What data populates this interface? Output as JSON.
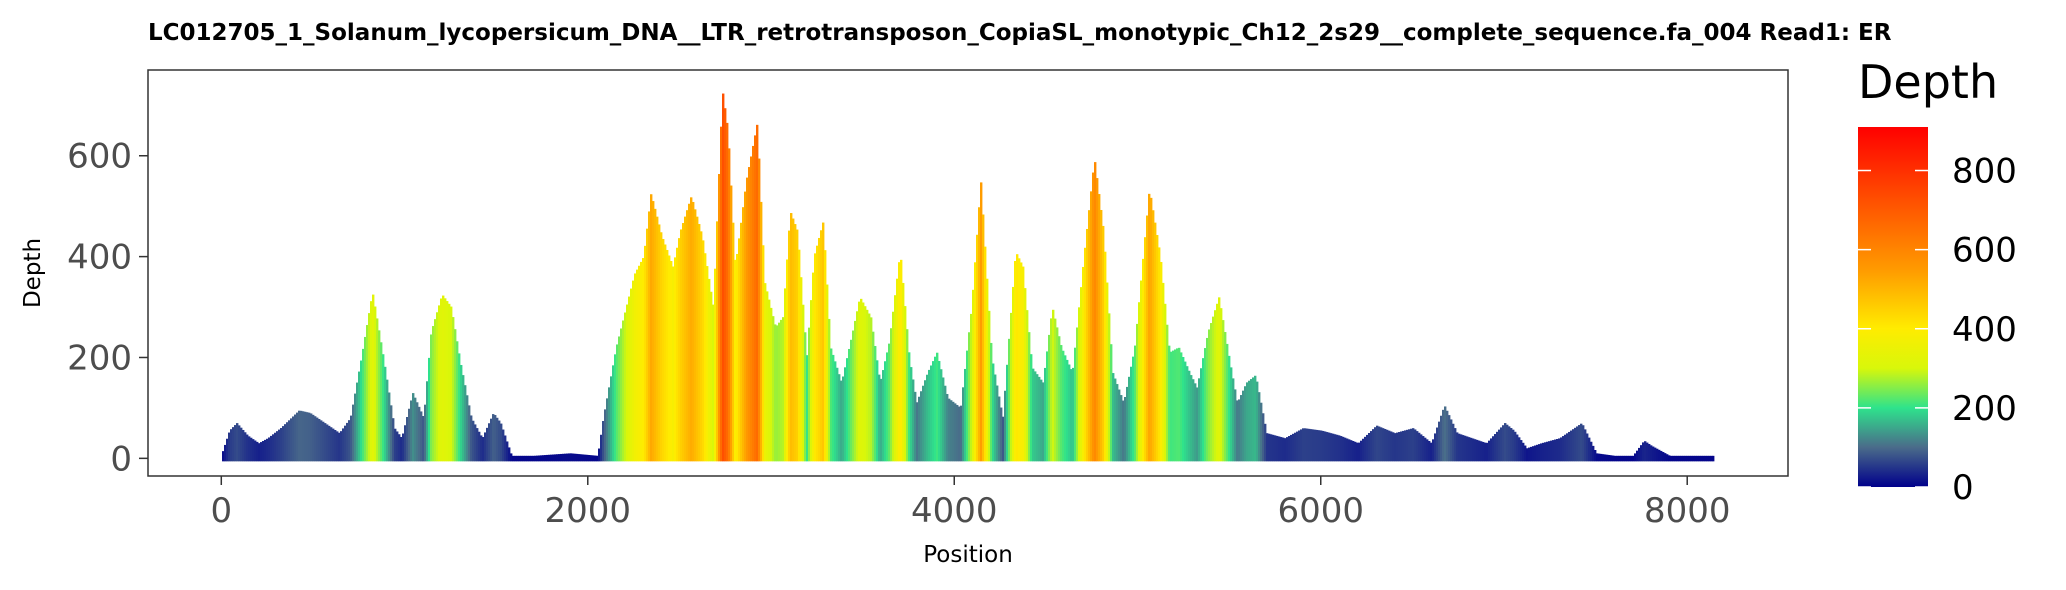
{
  "chart_data": {
    "type": "area",
    "title": "LC012705_1_Solanum_lycopersicum_DNA__LTR_retrotransposon_CopiaSL_monotypic_Ch12_2s29__complete_sequence.fa_004    Read1: ER",
    "xlabel": "Position",
    "ylabel": "Depth",
    "xlim": [
      -400,
      8550
    ],
    "ylim": [
      -35,
      770
    ],
    "xticks": [
      0,
      2000,
      4000,
      6000,
      8000
    ],
    "yticks": [
      0,
      200,
      400,
      600
    ],
    "grid": false,
    "color_scale": {
      "title": "Depth",
      "min": 0,
      "max": 910,
      "ticks": [
        0,
        200,
        400,
        600,
        800
      ],
      "stops": [
        {
          "value": 0,
          "color": "#00008b"
        },
        {
          "value": 100,
          "color": "#4a6b8a"
        },
        {
          "value": 200,
          "color": "#2ee38c"
        },
        {
          "value": 300,
          "color": "#d8f70a"
        },
        {
          "value": 400,
          "color": "#ffec00"
        },
        {
          "value": 550,
          "color": "#ff9a00"
        },
        {
          "value": 700,
          "color": "#ff5a00"
        },
        {
          "value": 910,
          "color": "#ff0000"
        }
      ],
      "legend_position": "right"
    },
    "series": [
      {
        "x": [
          0,
          40,
          80,
          140,
          200,
          250,
          320,
          420,
          480,
          560,
          640,
          700,
          760,
          820,
          880,
          940,
          980,
          1040,
          1100,
          1140,
          1200,
          1250,
          1300,
          1360,
          1420,
          1480,
          1520,
          1580,
          1700,
          1900,
          2050,
          2080,
          2150,
          2250,
          2300,
          2340,
          2400,
          2460,
          2500,
          2560,
          2620,
          2680,
          2730,
          2760,
          2800,
          2860,
          2920,
          2960,
          3020,
          3060,
          3100,
          3140,
          3190,
          3230,
          3280,
          3320,
          3380,
          3440,
          3480,
          3540,
          3590,
          3640,
          3700,
          3750,
          3790,
          3850,
          3900,
          3960,
          4030,
          4090,
          4140,
          4200,
          4260,
          4330,
          4370,
          4420,
          4480,
          4530,
          4580,
          4640,
          4700,
          4760,
          4810,
          4860,
          4920,
          4980,
          5060,
          5120,
          5170,
          5220,
          5280,
          5320,
          5380,
          5440,
          5500,
          5540,
          5590,
          5640,
          5700,
          5800,
          5900,
          6000,
          6100,
          6200,
          6300,
          6400,
          6500,
          6600,
          6670,
          6740,
          6820,
          6900,
          7000,
          7050,
          7120,
          7200,
          7300,
          7420,
          7500,
          7600,
          7700,
          7760,
          7800,
          7900,
          8000,
          8100,
          8140
        ],
        "y": [
          10,
          55,
          70,
          45,
          30,
          40,
          60,
          95,
          90,
          70,
          50,
          80,
          200,
          330,
          200,
          60,
          40,
          130,
          80,
          250,
          325,
          300,
          190,
          80,
          40,
          90,
          70,
          5,
          5,
          10,
          5,
          80,
          220,
          365,
          400,
          525,
          440,
          380,
          450,
          520,
          440,
          300,
          730,
          650,
          380,
          550,
          665,
          350,
          260,
          280,
          490,
          450,
          200,
          400,
          470,
          220,
          150,
          250,
          320,
          280,
          150,
          230,
          410,
          200,
          110,
          170,
          210,
          120,
          100,
          300,
          550,
          200,
          80,
          410,
          380,
          180,
          150,
          300,
          220,
          170,
          390,
          595,
          450,
          170,
          110,
          220,
          535,
          400,
          210,
          220,
          170,
          140,
          250,
          320,
          190,
          110,
          150,
          165,
          50,
          40,
          60,
          55,
          45,
          30,
          65,
          50,
          60,
          30,
          105,
          50,
          40,
          30,
          70,
          55,
          20,
          30,
          40,
          70,
          10,
          5,
          5,
          35,
          25,
          5,
          5,
          5,
          5
        ]
      }
    ]
  }
}
